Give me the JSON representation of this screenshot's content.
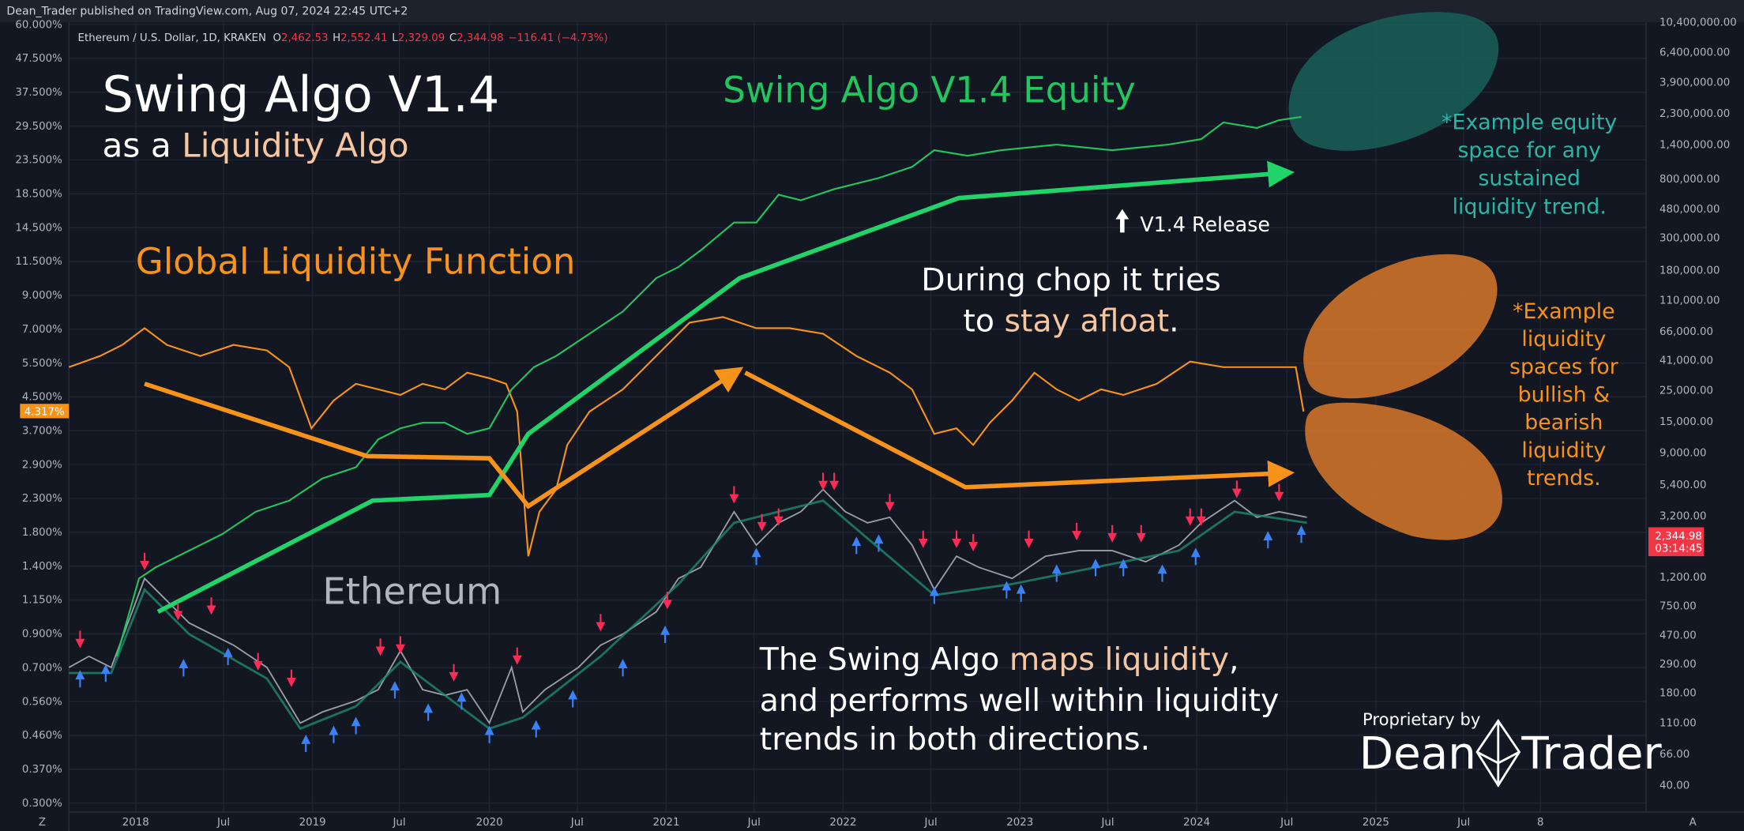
{
  "header": {
    "publisher": "Dean_Trader published on TradingView.com, Aug 07, 2024 22:45 UTC+2"
  },
  "legend": {
    "symbol": "Ethereum / U.S. Dollar, 1D, KRAKEN",
    "open_label": "O",
    "open": "2,462.53",
    "high_label": "H",
    "high": "2,552.41",
    "low_label": "L",
    "low": "2,329.09",
    "close_label": "C",
    "close": "2,344.98",
    "change": "−116.41 (−4.73%)"
  },
  "left_axis": [
    "60.000%",
    "47.500%",
    "37.500%",
    "29.500%",
    "23.500%",
    "18.500%",
    "14.500%",
    "11.500%",
    "9.000%",
    "7.000%",
    "5.500%",
    "4.500%",
    "3.700%",
    "2.900%",
    "2.300%",
    "1.800%",
    "1.400%",
    "1.150%",
    "0.900%",
    "0.700%",
    "0.560%",
    "0.460%",
    "0.370%",
    "0.300%"
  ],
  "left_current": "4.317%",
  "right_axis": [
    "10,400,000.00",
    "6,400,000.00",
    "3,900,000.00",
    "2,300,000.00",
    "1,400,000.00",
    "800,000.00",
    "480,000.00",
    "300,000.00",
    "180,000.00",
    "110,000.00",
    "66,000.00",
    "41,000.00",
    "25,000.00",
    "15,000.00",
    "9,000.00",
    "5,400.00",
    "3,200.00",
    "1,200.00",
    "750.00",
    "470.00",
    "290.00",
    "180.00",
    "110.00",
    "66.00",
    "40.00"
  ],
  "price_label": "2,344.98",
  "countdown": "03:14:45",
  "time_axis": [
    "2018",
    "Jul",
    "2019",
    "Jul",
    "2020",
    "Jul",
    "2021",
    "Jul",
    "2022",
    "Jul",
    "2023",
    "Jul",
    "2024",
    "Jul",
    "2025",
    "Jul",
    "8"
  ],
  "corner_left": "Z",
  "corner_right": "A",
  "annotations": {
    "title": "Swing Algo V1.4",
    "subtitle_a": "as a ",
    "subtitle_b": "Liquidity Algo",
    "equity": "Swing Algo V1.4 Equity",
    "liquidity": "Global Liquidity Function",
    "ethereum": "Ethereum",
    "release": "V1.4 Release",
    "chop": [
      "During chop it tries",
      "to ",
      "stay afloat",
      "."
    ],
    "equity_space": [
      "*Example equity",
      "space for any",
      "sustained",
      "liquidity trend."
    ],
    "liquidity_space": [
      "*Example",
      "liquidity",
      "spaces for",
      "bullish &",
      "bearish",
      "liquidity",
      "trends."
    ],
    "maps": [
      "The Swing Algo ",
      "maps liquidity",
      ",",
      "and performs well within liquidity",
      "trends in both directions."
    ],
    "brand_by": "Proprietary by",
    "brand_a": "Dean",
    "brand_b": "Trader"
  }
}
